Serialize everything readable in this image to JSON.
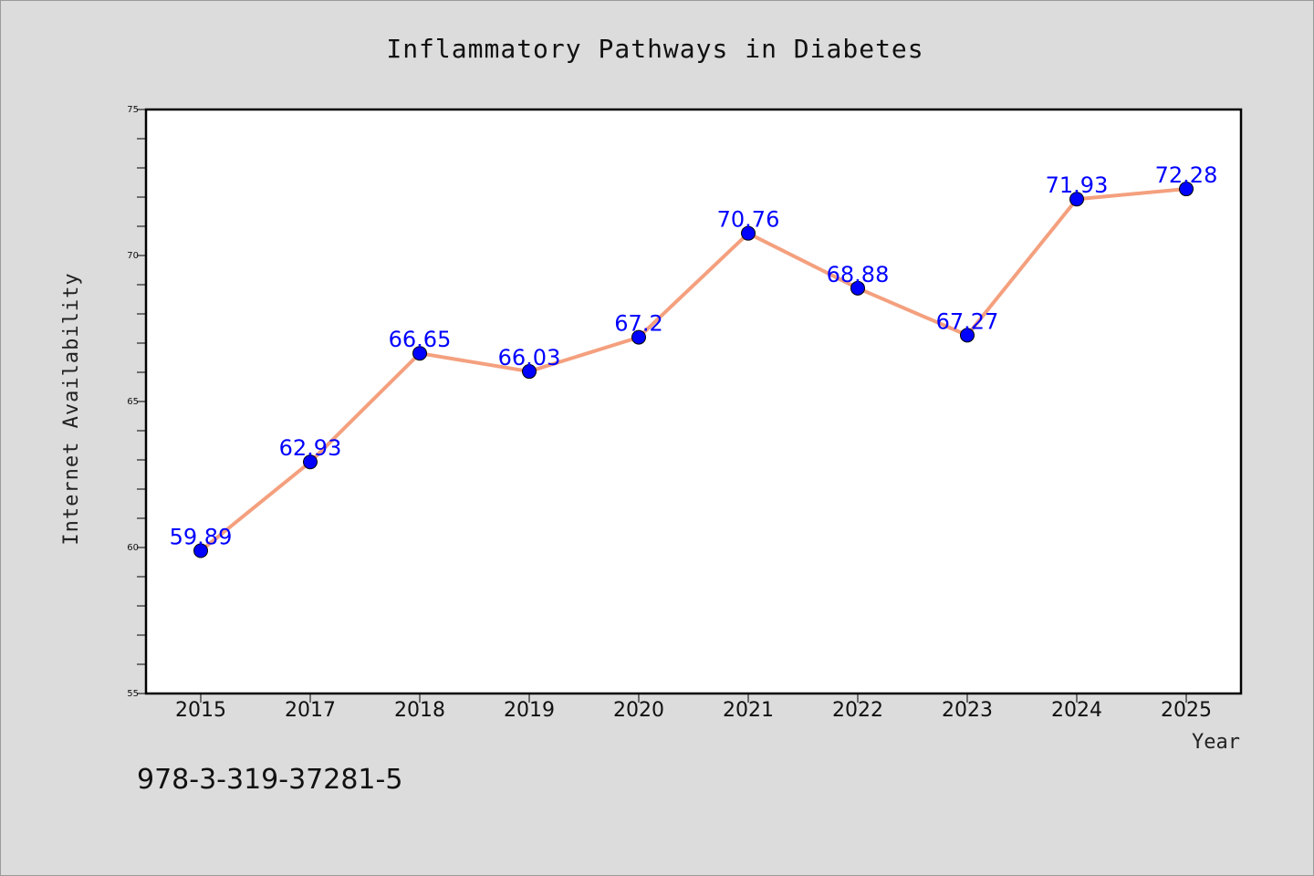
{
  "chart_data": {
    "type": "line",
    "title": "Inflammatory Pathways in Diabetes",
    "xlabel": "Year",
    "ylabel": "Internet Availability",
    "categories": [
      "2015",
      "2017",
      "2018",
      "2019",
      "2020",
      "2021",
      "2022",
      "2023",
      "2024",
      "2025"
    ],
    "series": [
      {
        "values": [
          59.89,
          62.93,
          66.65,
          66.03,
          67.2,
          70.76,
          68.88,
          67.27,
          71.93,
          72.28
        ],
        "labels": [
          "59.89",
          "62.93",
          "66.65",
          "66.03",
          "67.2",
          "70.76",
          "68.88",
          "67.27",
          "71.93",
          "72.28"
        ]
      }
    ],
    "ylim": [
      55,
      75
    ],
    "yticks": [
      "55",
      "60",
      "65",
      "70",
      "75"
    ],
    "grid": false,
    "line_color": "#f4a07e",
    "marker_color": "#0000ff",
    "label_color": "#0000ff"
  },
  "annotation": "978-3-319-37281-5"
}
